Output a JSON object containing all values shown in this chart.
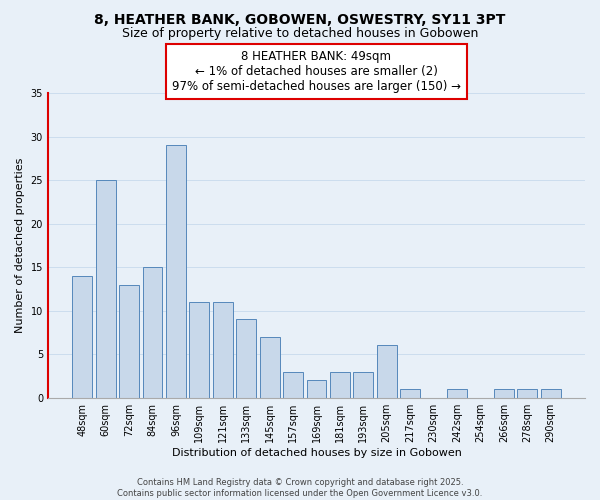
{
  "title": "8, HEATHER BANK, GOBOWEN, OSWESTRY, SY11 3PT",
  "subtitle": "Size of property relative to detached houses in Gobowen",
  "xlabel": "Distribution of detached houses by size in Gobowen",
  "ylabel": "Number of detached properties",
  "categories": [
    "48sqm",
    "60sqm",
    "72sqm",
    "84sqm",
    "96sqm",
    "109sqm",
    "121sqm",
    "133sqm",
    "145sqm",
    "157sqm",
    "169sqm",
    "181sqm",
    "193sqm",
    "205sqm",
    "217sqm",
    "230sqm",
    "242sqm",
    "254sqm",
    "266sqm",
    "278sqm",
    "290sqm"
  ],
  "values": [
    14,
    25,
    13,
    15,
    29,
    11,
    11,
    9,
    7,
    3,
    2,
    3,
    3,
    6,
    1,
    0,
    1,
    0,
    1,
    1,
    1
  ],
  "bar_color": "#c8d8ea",
  "bar_edge_color": "#5588bb",
  "highlight_color": "#dd0000",
  "annotation_text": "8 HEATHER BANK: 49sqm\n← 1% of detached houses are smaller (2)\n97% of semi-detached houses are larger (150) →",
  "annotation_box_color": "#ffffff",
  "annotation_box_edge_color": "#dd0000",
  "ylim": [
    0,
    35
  ],
  "yticks": [
    0,
    5,
    10,
    15,
    20,
    25,
    30,
    35
  ],
  "grid_color": "#ccddee",
  "background_color": "#e8f0f8",
  "footer_text": "Contains HM Land Registry data © Crown copyright and database right 2025.\nContains public sector information licensed under the Open Government Licence v3.0.",
  "title_fontsize": 10,
  "subtitle_fontsize": 9,
  "axis_label_fontsize": 8,
  "tick_fontsize": 7,
  "annotation_fontsize": 8.5,
  "footer_fontsize": 6
}
